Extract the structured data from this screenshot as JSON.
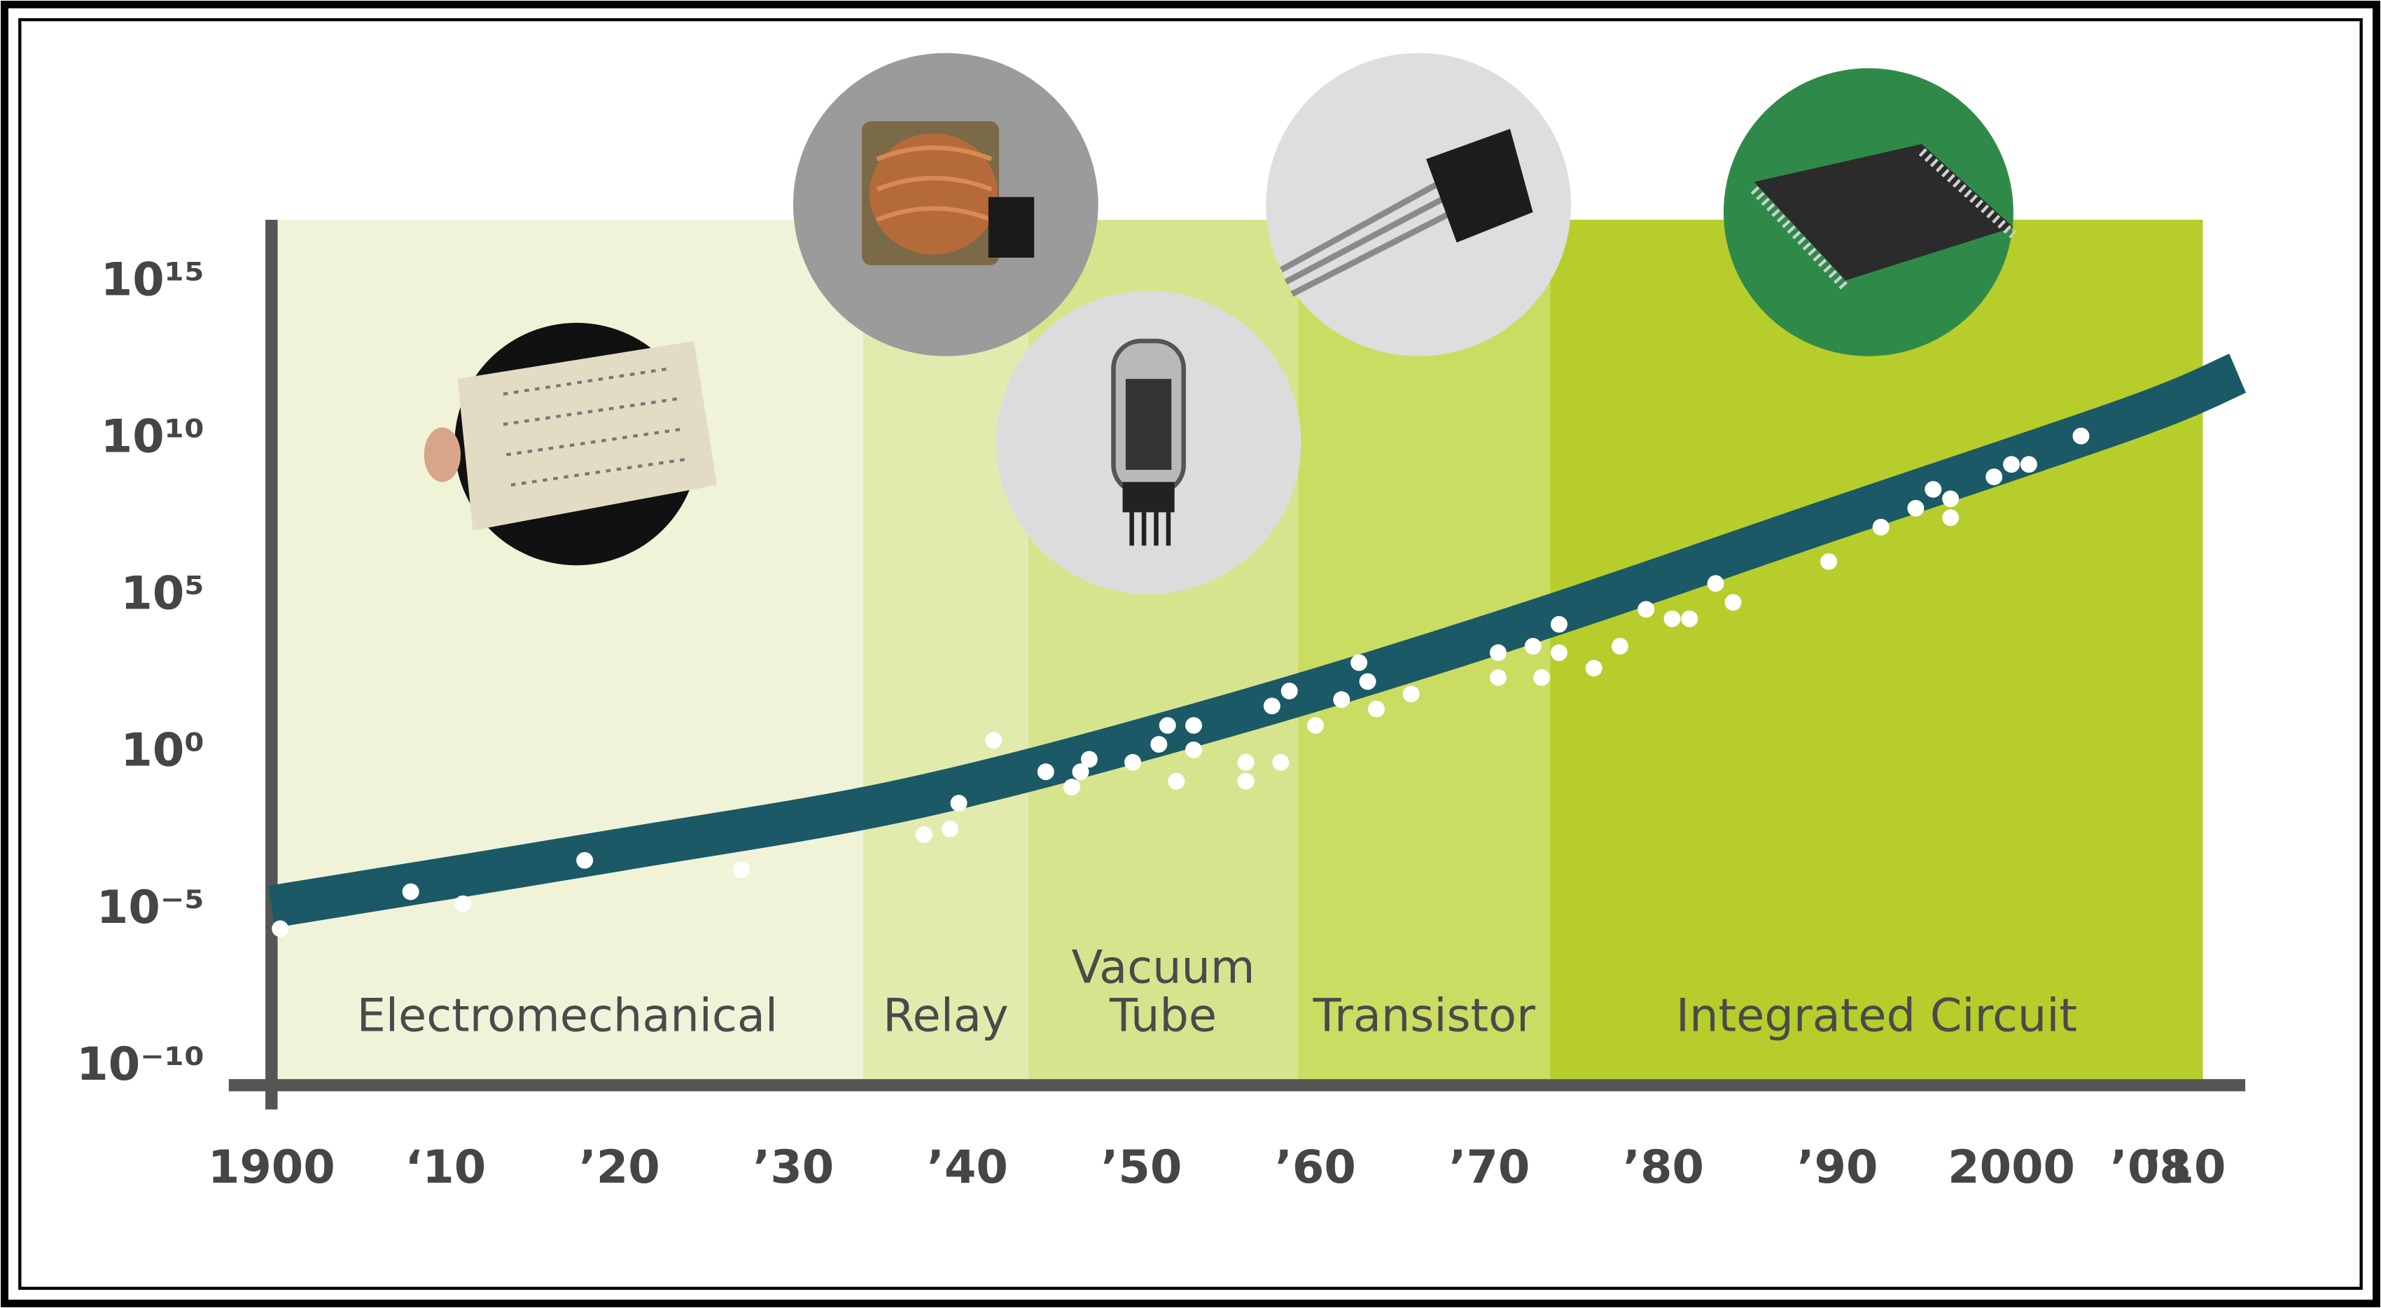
{
  "chart_data": {
    "type": "scatter",
    "log_y": true,
    "xlim": [
      1900,
      2013
    ],
    "ylim": [
      1e-10,
      1e+17
    ],
    "xticks": [
      1900,
      {
        "value": 1910,
        "label": "‘10"
      },
      {
        "value": 1920,
        "label": "’20"
      },
      {
        "value": 1930,
        "label": "’30"
      },
      {
        "value": 1940,
        "label": "’40"
      },
      {
        "value": 1950,
        "label": "’50"
      },
      {
        "value": 1960,
        "label": "’60"
      },
      {
        "value": 1970,
        "label": "’70"
      },
      {
        "value": 1980,
        "label": "’80"
      },
      {
        "value": 1990,
        "label": "’90"
      },
      {
        "value": 2000,
        "label": "2000"
      },
      {
        "value": 2008,
        "label": "’08"
      },
      {
        "value": 2010,
        "label": "’10"
      }
    ],
    "yticks": [
      {
        "value": 1e-10,
        "label": "10⁻¹⁰"
      },
      {
        "value": 1e-05,
        "label": "10⁻⁵"
      },
      {
        "value": 1,
        "label": "10⁰"
      },
      {
        "value": 100000.0,
        "label": "10⁵"
      },
      {
        "value": 10000000000.0,
        "label": "10¹⁰"
      },
      {
        "value": 1000000000000000.0,
        "label": "10¹⁵"
      }
    ],
    "eras": [
      {
        "label_lines": [
          "Electromechanical"
        ],
        "start": 1900,
        "end": 1934,
        "color": "#f0f3d8"
      },
      {
        "label_lines": [
          "Relay"
        ],
        "start": 1934,
        "end": 1943.5,
        "color": "#e3eaae"
      },
      {
        "label_lines": [
          "Vacuum",
          "Tube"
        ],
        "start": 1943.5,
        "end": 1959,
        "color": "#d7e48e"
      },
      {
        "label_lines": [
          "Transistor"
        ],
        "start": 1959,
        "end": 1973.5,
        "color": "#cbdc62"
      },
      {
        "label_lines": [
          "Integrated Circuit"
        ],
        "start": 1973.5,
        "end": 2011,
        "color": "#b6cd2c"
      }
    ],
    "trend": {
      "color": "#1b5966",
      "x": [
        1900,
        1920,
        1937,
        1955,
        1972,
        1990,
        2007,
        2013
      ],
      "values": [
        2e-05,
        0.0013,
        0.06,
        25,
        20000.0,
        50000000.0,
        80000000000.0,
        2000000000000.0
      ]
    },
    "points": {
      "color": "#ffffff",
      "x": [
        1900.5,
        1908,
        1911,
        1918,
        1927,
        1937.5,
        1939,
        1939.5,
        1941.5,
        1944.5,
        1946,
        1946.5,
        1947,
        1949.5,
        1951,
        1951.5,
        1952,
        1953,
        1953,
        1956,
        1956,
        1958,
        1957.5,
        1958.5,
        1960,
        1961.5,
        1962.5,
        1963,
        1963.5,
        1965.5,
        1970.5,
        1970.5,
        1972.5,
        1973,
        1974,
        1974,
        1976,
        1977.5,
        1979,
        1980.5,
        1981.5,
        1983,
        1984,
        1989.5,
        1992.5,
        1994.5,
        1995.5,
        1996.5,
        1996.5,
        1999,
        2000,
        2001,
        2004
      ],
      "values": [
        4e-06,
        6e-05,
        2.5e-05,
        0.0006,
        0.0003,
        0.004,
        0.006,
        0.04,
        4,
        0.4,
        0.13,
        0.4,
        1,
        0.8,
        3,
        12,
        0.2,
        2,
        12,
        0.2,
        0.8,
        0.8,
        50,
        150,
        12,
        80,
        1200,
        300,
        40,
        120,
        400,
        2500,
        4000,
        400,
        2500,
        20000.0,
        800,
        4000,
        60000.0,
        30000.0,
        30000.0,
        400000.0,
        100000.0,
        2000000.0,
        25000000.0,
        100000000.0,
        400000000.0,
        200000000.0,
        50000000.0,
        1000000000.0,
        2500000000.0,
        2500000000.0,
        20000000000.0
      ]
    }
  }
}
